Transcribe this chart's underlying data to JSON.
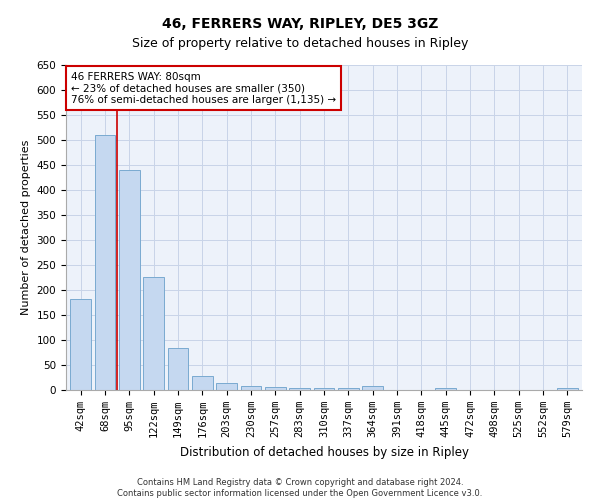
{
  "title1": "46, FERRERS WAY, RIPLEY, DE5 3GZ",
  "title2": "Size of property relative to detached houses in Ripley",
  "xlabel": "Distribution of detached houses by size in Ripley",
  "ylabel": "Number of detached properties",
  "categories": [
    "42sqm",
    "68sqm",
    "95sqm",
    "122sqm",
    "149sqm",
    "176sqm",
    "203sqm",
    "230sqm",
    "257sqm",
    "283sqm",
    "310sqm",
    "337sqm",
    "364sqm",
    "391sqm",
    "418sqm",
    "445sqm",
    "472sqm",
    "498sqm",
    "525sqm",
    "552sqm",
    "579sqm"
  ],
  "values": [
    182,
    510,
    440,
    227,
    85,
    28,
    15,
    9,
    6,
    5,
    5,
    5,
    8,
    0,
    0,
    5,
    0,
    0,
    0,
    0,
    5
  ],
  "bar_color": "#c5d8f0",
  "bar_edge_color": "#7aaad0",
  "grid_color": "#c8d4e8",
  "background_color": "#edf2fa",
  "vline_x": 1.5,
  "vline_color": "#cc0000",
  "annotation_text": "46 FERRERS WAY: 80sqm\n← 23% of detached houses are smaller (350)\n76% of semi-detached houses are larger (1,135) →",
  "annotation_box_color": "#ffffff",
  "annotation_box_edge_color": "#cc0000",
  "ylim": [
    0,
    650
  ],
  "yticks": [
    0,
    50,
    100,
    150,
    200,
    250,
    300,
    350,
    400,
    450,
    500,
    550,
    600,
    650
  ],
  "footer": "Contains HM Land Registry data © Crown copyright and database right 2024.\nContains public sector information licensed under the Open Government Licence v3.0.",
  "title1_fontsize": 10,
  "title2_fontsize": 9,
  "xlabel_fontsize": 8.5,
  "ylabel_fontsize": 8,
  "tick_fontsize": 7.5,
  "annotation_fontsize": 7.5,
  "footer_fontsize": 6
}
